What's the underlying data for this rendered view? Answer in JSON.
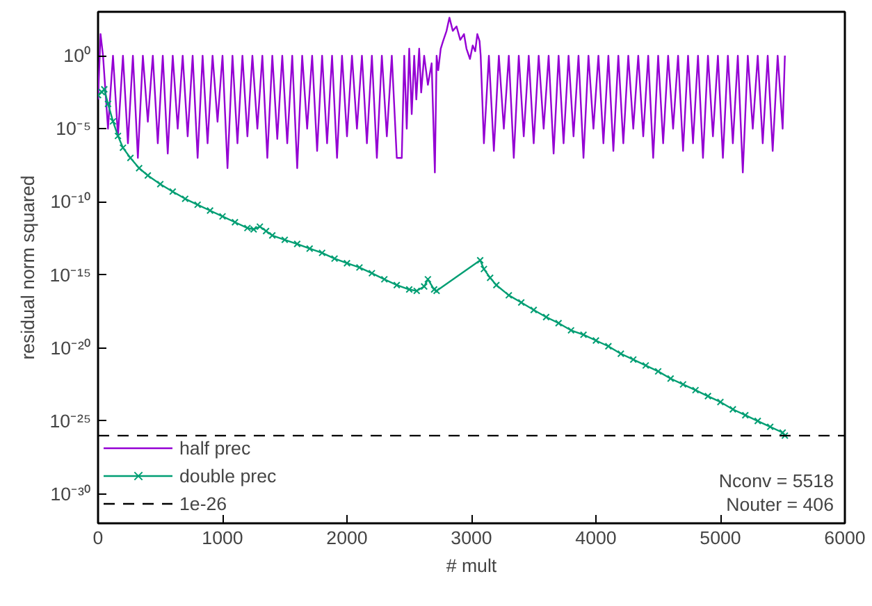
{
  "chart_data": {
    "type": "line",
    "xlabel": "# mult",
    "ylabel": "residual norm squared",
    "log": "y",
    "xlim": [
      0,
      6000
    ],
    "xticks": [
      0,
      1000,
      2000,
      3000,
      4000,
      5000,
      6000
    ],
    "ylim": [
      1e-32,
      1000.0
    ],
    "yticks": [
      {
        "value": 1e-30,
        "label": "10⁻³⁰"
      },
      {
        "value": 1e-25,
        "label": "10⁻²⁵"
      },
      {
        "value": 1e-20,
        "label": "10⁻²⁰"
      },
      {
        "value": 1e-15,
        "label": "10⁻¹⁵"
      },
      {
        "value": 1e-10,
        "label": "10⁻¹⁰"
      },
      {
        "value": 1e-05,
        "label": "10⁻⁵"
      },
      {
        "value": 1,
        "label": "10⁰"
      }
    ],
    "grid": false,
    "legend": "bottom left",
    "series": [
      {
        "name": "half prec",
        "color": "#9400d3",
        "marker": "none",
        "x": [
          0,
          20,
          40,
          80,
          120,
          160,
          200,
          240,
          280,
          320,
          360,
          400,
          440,
          480,
          520,
          560,
          600,
          640,
          680,
          720,
          760,
          800,
          840,
          880,
          920,
          960,
          1000,
          1040,
          1080,
          1120,
          1160,
          1200,
          1240,
          1280,
          1320,
          1360,
          1400,
          1440,
          1480,
          1520,
          1560,
          1600,
          1640,
          1680,
          1720,
          1760,
          1800,
          1840,
          1880,
          1920,
          1960,
          2000,
          2040,
          2080,
          2120,
          2160,
          2200,
          2240,
          2280,
          2320,
          2360,
          2400,
          2440,
          2460,
          2480,
          2500,
          2520,
          2540,
          2557,
          2580,
          2596,
          2620,
          2650,
          2680,
          2706,
          2720,
          2733,
          2753,
          2772,
          2800,
          2823,
          2850,
          2880,
          2910,
          2940,
          2960,
          2988,
          3010,
          3030,
          3047,
          3065,
          3074,
          3100,
          3140,
          3180,
          3220,
          3260,
          3300,
          3340,
          3380,
          3420,
          3460,
          3500,
          3540,
          3580,
          3620,
          3660,
          3700,
          3740,
          3780,
          3820,
          3860,
          3900,
          3940,
          3980,
          4020,
          4060,
          4100,
          4140,
          4180,
          4220,
          4260,
          4300,
          4340,
          4380,
          4420,
          4460,
          4500,
          4540,
          4580,
          4620,
          4660,
          4700,
          4740,
          4780,
          4820,
          4860,
          4900,
          4940,
          4980,
          5020,
          5060,
          5100,
          5140,
          5180,
          5220,
          5260,
          5300,
          5340,
          5380,
          5420,
          5460,
          5500,
          5518
        ],
        "values": [
          0.001,
          30,
          1,
          1e-05,
          1,
          3e-06,
          1,
          1e-06,
          1,
          1e-07,
          1,
          3e-05,
          1,
          1e-06,
          1,
          2e-07,
          1,
          1e-05,
          1,
          3e-06,
          1,
          1e-07,
          1,
          1e-06,
          1,
          3e-05,
          1,
          2e-08,
          1,
          1e-06,
          1,
          3e-06,
          1,
          1e-05,
          1,
          1e-07,
          1,
          2e-06,
          1,
          1e-06,
          1,
          2e-08,
          1,
          1e-05,
          1,
          3e-07,
          1,
          1e-06,
          1,
          1e-07,
          1,
          3e-06,
          1,
          1e-05,
          1,
          1e-06,
          1,
          1e-07,
          1,
          3e-06,
          1,
          1e-07,
          1e-07,
          1,
          1e-05,
          3,
          0.0001,
          1,
          0.001,
          3,
          0.003,
          1,
          0.01,
          0.3,
          1e-08,
          1,
          0.1,
          3,
          10,
          50,
          400,
          50,
          100,
          12,
          30,
          3,
          0.6,
          5,
          2,
          30,
          10,
          1,
          1e-06,
          1,
          3e-07,
          1,
          1e-05,
          1,
          1e-07,
          1,
          3e-06,
          1,
          1e-06,
          1,
          1e-05,
          1,
          2e-07,
          1,
          1e-06,
          1,
          3e-06,
          1,
          1e-07,
          1,
          1e-05,
          1,
          1e-06,
          1,
          3e-07,
          1,
          1e-06,
          1,
          1e-05,
          1,
          3e-06,
          1,
          1e-07,
          1,
          1e-06,
          1,
          1e-05,
          1,
          3e-07,
          1,
          1e-06,
          1,
          1e-07,
          1,
          3e-06,
          1,
          1e-07,
          1,
          1e-06,
          1,
          1e-08,
          1,
          1e-05,
          1,
          1e-06,
          1,
          3e-07,
          1,
          1e-05,
          1
        ]
      },
      {
        "name": "double prec",
        "color": "#009e73",
        "marker": "cross",
        "x": [
          0,
          30,
          50,
          80,
          120,
          160,
          200,
          260,
          330,
          400,
          500,
          600,
          700,
          800,
          900,
          1000,
          1100,
          1200,
          1250,
          1300,
          1350,
          1400,
          1500,
          1600,
          1700,
          1800,
          1900,
          2000,
          2100,
          2200,
          2300,
          2400,
          2500,
          2560,
          2620,
          2650,
          2700,
          2720,
          3070,
          3100,
          3150,
          3200,
          3300,
          3400,
          3500,
          3600,
          3700,
          3800,
          3900,
          4000,
          4100,
          4200,
          4300,
          4400,
          4500,
          4600,
          4700,
          4800,
          4900,
          5000,
          5100,
          5200,
          5300,
          5400,
          5500,
          5518
        ],
        "values": [
          0.002,
          0.0032,
          0.005,
          0.0005,
          3.2e-05,
          3.2e-06,
          5e-07,
          1e-07,
          2e-08,
          6.3e-09,
          1.6e-09,
          5e-10,
          1.6e-10,
          6.3e-11,
          2.5e-11,
          1e-11,
          4e-12,
          1.6e-12,
          1.3e-12,
          2e-12,
          1e-12,
          5e-13,
          2.5e-13,
          1.3e-13,
          6.3e-14,
          3.2e-14,
          1.3e-14,
          6.3e-15,
          3.2e-15,
          1.3e-15,
          5e-16,
          2e-16,
          1e-16,
          8e-17,
          1.6e-16,
          5e-16,
          1e-16,
          8e-17,
          1e-14,
          2.5e-15,
          6.3e-16,
          2e-16,
          4e-17,
          1.3e-17,
          4e-18,
          1.3e-18,
          5e-19,
          1.6e-19,
          8e-20,
          3.2e-20,
          1.3e-20,
          4e-21,
          1.6e-21,
          6.3e-22,
          2.5e-22,
          8e-23,
          3.2e-23,
          1.3e-23,
          5e-24,
          2e-24,
          6.3e-25,
          2.5e-25,
          1e-25,
          4e-26,
          1.6e-26,
          1e-26
        ]
      }
    ],
    "ref_lines": [
      {
        "axis": "y",
        "value": 1e-26,
        "label": "1e-26",
        "color": "#000000",
        "line_style": "dashed"
      }
    ],
    "annotations": [
      "Nconv = 5518",
      "Nouter = 406"
    ]
  }
}
